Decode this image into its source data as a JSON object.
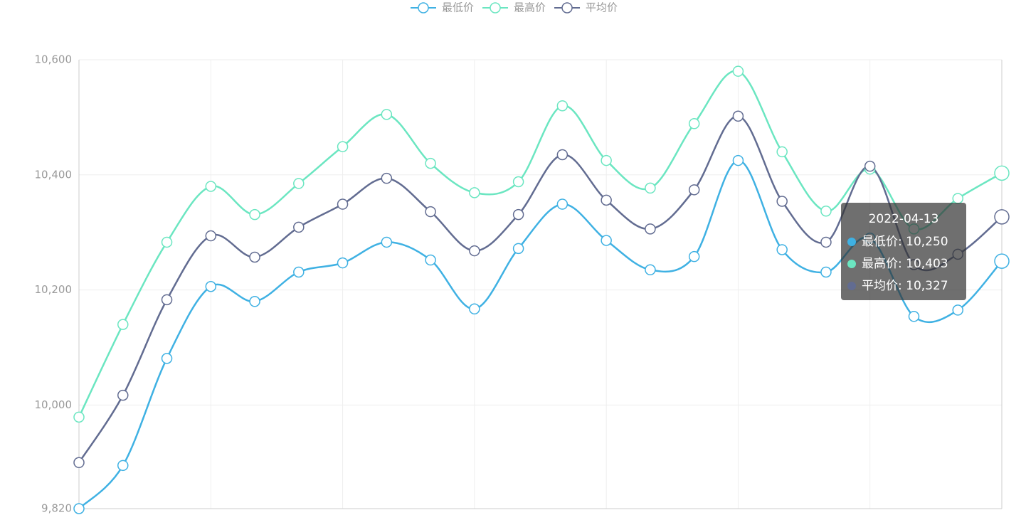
{
  "chart_data": {
    "type": "line",
    "categories": [
      null,
      null,
      null,
      null,
      null,
      null,
      null,
      null,
      null,
      null,
      null,
      null,
      null,
      null,
      null,
      null,
      null,
      null,
      null,
      null,
      null,
      "2022-04-13"
    ],
    "series": [
      {
        "name": "最低价",
        "color": "#3fb1e3",
        "values": [
          9820,
          9895,
          10081,
          10206,
          10180,
          10231,
          10247,
          10283,
          10252,
          10167,
          10272,
          10349,
          10286,
          10235,
          10258,
          10425,
          10270,
          10231,
          10290,
          10154,
          10165,
          10250
        ]
      },
      {
        "name": "最高价",
        "color": "#6be6c1",
        "values": [
          9979,
          10140,
          10283,
          10380,
          10331,
          10385,
          10449,
          10505,
          10420,
          10369,
          10388,
          10520,
          10425,
          10377,
          10489,
          10580,
          10440,
          10337,
          10410,
          10306,
          10359,
          10403
        ]
      },
      {
        "name": "平均价",
        "color": "#626c91",
        "values": [
          9900,
          10017,
          10183,
          10294,
          10257,
          10309,
          10349,
          10394,
          10336,
          10268,
          10331,
          10435,
          10356,
          10306,
          10374,
          10502,
          10354,
          10283,
          10415,
          10244,
          10262,
          10327
        ]
      }
    ],
    "ylim": [
      9820,
      10600
    ],
    "yticks": [
      {
        "value": 9820,
        "label": "9,820"
      },
      {
        "value": 10000,
        "label": "10,000"
      },
      {
        "value": 10200,
        "label": "10,200"
      },
      {
        "value": 10400,
        "label": "10,400"
      },
      {
        "value": 10600,
        "label": "10,600"
      }
    ],
    "grid": true,
    "legend": "top",
    "tooltip": {
      "rows": [
        "最低价: 10,250",
        "最高价: 10,403",
        "平均价: 10,327"
      ]
    }
  }
}
